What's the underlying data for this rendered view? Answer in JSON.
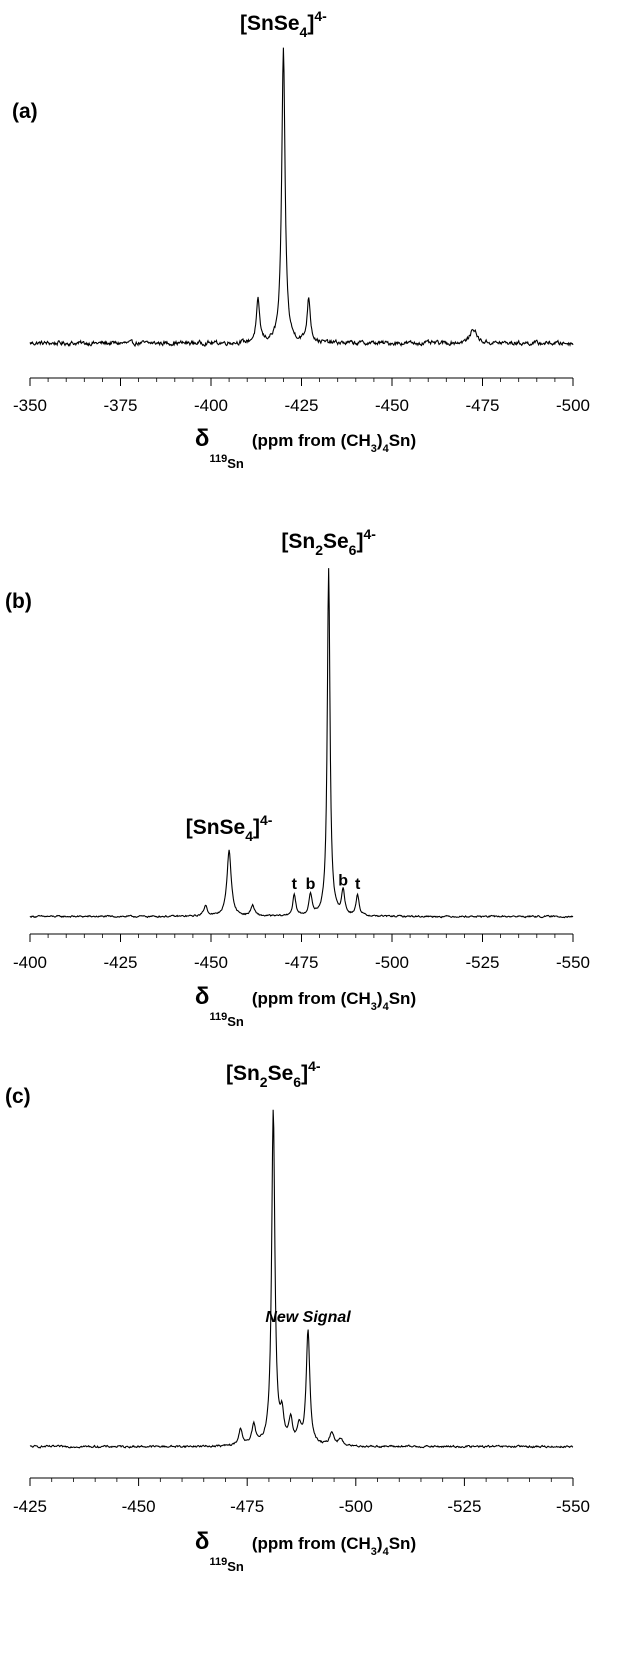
{
  "chart_data": [
    {
      "type": "line",
      "panel_label": "(a)",
      "xlabel": {
        "delta": "δ",
        "sub": "119",
        "sub2": "Sn",
        "text": "(ppm from (CH",
        "sub3": "3",
        "text2": ")",
        "sub4": "4",
        "text3": "Sn)"
      },
      "xlim": [
        -350,
        -500
      ],
      "xticks": [
        -350,
        -375,
        -400,
        -425,
        -450,
        -475,
        -500
      ],
      "baseline": 0.03,
      "noise": 0.012,
      "peaks": [
        {
          "x": -420.0,
          "height": 1.0,
          "width": 0.55
        },
        {
          "x": -413.0,
          "height": 0.14,
          "width": 0.55
        },
        {
          "x": -427.0,
          "height": 0.15,
          "width": 0.55
        },
        {
          "x": -472.5,
          "height": 0.05,
          "width": 1.0
        }
      ],
      "annotations": [
        {
          "kind": "ion",
          "base": "[SnSe",
          "sub": "4",
          "close": "]",
          "sup": "4-",
          "at_x": -420.0
        }
      ]
    },
    {
      "type": "line",
      "panel_label": "(b)",
      "xlabel": {
        "delta": "δ",
        "sub": "119",
        "sub2": "Sn",
        "text": "(ppm from (CH",
        "sub3": "3",
        "text2": ")",
        "sub4": "4",
        "text3": "Sn)"
      },
      "xlim": [
        -400,
        -550
      ],
      "xticks": [
        -400,
        -425,
        -450,
        -475,
        -500,
        -525,
        -550
      ],
      "baseline": 0.01,
      "noise": 0.004,
      "peaks": [
        {
          "x": -482.5,
          "height": 1.0,
          "width": 0.45
        },
        {
          "x": -455.0,
          "height": 0.19,
          "width": 0.7
        },
        {
          "x": -448.5,
          "height": 0.03,
          "width": 0.6
        },
        {
          "x": -461.5,
          "height": 0.03,
          "width": 0.6
        },
        {
          "x": -473.0,
          "height": 0.06,
          "width": 0.5
        },
        {
          "x": -477.5,
          "height": 0.06,
          "width": 0.5
        },
        {
          "x": -486.5,
          "height": 0.07,
          "width": 0.5
        },
        {
          "x": -490.5,
          "height": 0.06,
          "width": 0.5
        }
      ],
      "annotations": [
        {
          "kind": "ion",
          "base": "[Sn",
          "sub": "2",
          "mid": "Se",
          "sub_b": "6",
          "close": "]",
          "sup": "4-",
          "at_x": -482.5
        },
        {
          "kind": "ion",
          "base": "[SnSe",
          "sub": "4",
          "close": "]",
          "sup": "4-",
          "at_x": -455.0
        },
        {
          "kind": "tag",
          "text": "t",
          "at_x": -473.0
        },
        {
          "kind": "tag",
          "text": "b",
          "at_x": -477.5
        },
        {
          "kind": "tag",
          "text": "b",
          "at_x": -486.5
        },
        {
          "kind": "tag",
          "text": "t",
          "at_x": -490.5
        }
      ]
    },
    {
      "type": "line",
      "panel_label": "(c)",
      "xlabel": {
        "delta": "δ",
        "sub": "119",
        "sub2": "Sn",
        "text": "(ppm from (CH",
        "sub3": "3",
        "text2": ")",
        "sub4": "4",
        "text3": "Sn)"
      },
      "xlim": [
        -425,
        -550
      ],
      "xticks": [
        -425,
        -450,
        -475,
        -500,
        -525,
        -550
      ],
      "baseline": 0.01,
      "noise": 0.005,
      "peaks": [
        {
          "x": -481.0,
          "height": 1.0,
          "width": 0.45
        },
        {
          "x": -489.0,
          "height": 0.34,
          "width": 0.5
        },
        {
          "x": -473.5,
          "height": 0.05,
          "width": 0.5
        },
        {
          "x": -476.5,
          "height": 0.06,
          "width": 0.5
        },
        {
          "x": -483.0,
          "height": 0.08,
          "width": 0.5
        },
        {
          "x": -485.0,
          "height": 0.07,
          "width": 0.5
        },
        {
          "x": -487.0,
          "height": 0.05,
          "width": 0.5
        },
        {
          "x": -494.5,
          "height": 0.04,
          "width": 0.6
        },
        {
          "x": -496.5,
          "height": 0.02,
          "width": 0.6
        }
      ],
      "annotations": [
        {
          "kind": "ion",
          "base": "[Sn",
          "sub": "2",
          "mid": "Se",
          "sub_b": "6",
          "close": "]",
          "sup": "4-",
          "at_x": -481.0
        },
        {
          "kind": "italic",
          "text": "New Signal",
          "at_x": -489.0
        }
      ]
    }
  ]
}
